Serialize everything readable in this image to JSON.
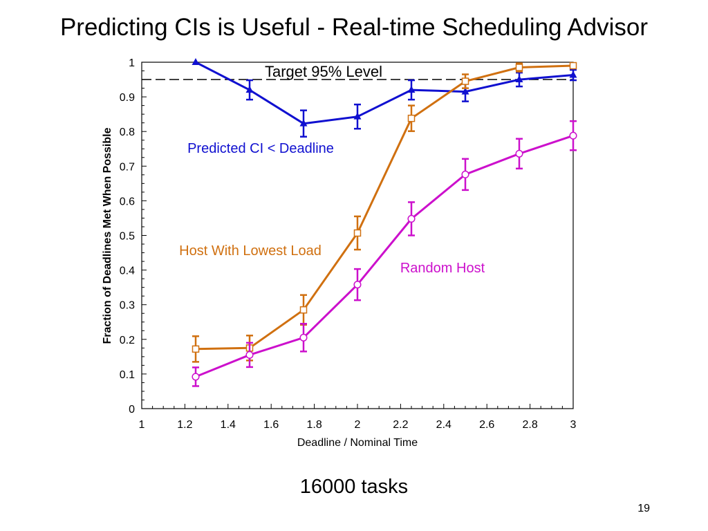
{
  "slide": {
    "title": "Predicting CIs is Useful - Real-time Scheduling Advisor",
    "caption": "16000 tasks",
    "page_number": "19"
  },
  "chart_data": {
    "type": "line",
    "title": "",
    "xlabel": "Deadline / Nominal Time",
    "ylabel": "Fraction of Deadlines Met When Possible",
    "xlim": [
      1,
      3
    ],
    "ylim": [
      0,
      1
    ],
    "x_ticks": [
      1,
      1.2,
      1.4,
      1.6,
      1.8,
      2,
      2.2,
      2.4,
      2.6,
      2.8,
      3
    ],
    "x_tick_labels": [
      "1",
      "1.2",
      "1.4",
      "1.6",
      "1.8",
      "2",
      "2.2",
      "2.4",
      "2.6",
      "2.8",
      "3"
    ],
    "y_ticks": [
      0,
      0.1,
      0.2,
      0.3,
      0.4,
      0.5,
      0.6,
      0.7,
      0.8,
      0.9,
      1
    ],
    "y_tick_labels": [
      "0",
      "0.1",
      "0.2",
      "0.3",
      "0.4",
      "0.5",
      "0.6",
      "0.7",
      "0.8",
      "0.9",
      "1"
    ],
    "grid": false,
    "reference_line": {
      "y": 0.95,
      "style": "dashed",
      "label": "Target 95% Level",
      "color": "#000000"
    },
    "series": [
      {
        "name": "Predicted CI < Deadline",
        "color": "#1010d0",
        "marker": "triangle",
        "x": [
          1.25,
          1.5,
          1.75,
          2.0,
          2.25,
          2.5,
          2.75,
          3.0
        ],
        "y": [
          1.0,
          0.92,
          0.823,
          0.843,
          0.92,
          0.915,
          0.95,
          0.963
        ],
        "err": [
          0.0,
          0.028,
          0.038,
          0.035,
          0.028,
          0.028,
          0.02,
          0.015
        ]
      },
      {
        "name": "Host With Lowest Load",
        "color": "#d07010",
        "marker": "square",
        "x": [
          1.25,
          1.5,
          1.75,
          2.0,
          2.25,
          2.5,
          2.75,
          3.0
        ],
        "y": [
          0.172,
          0.175,
          0.285,
          0.507,
          0.838,
          0.945,
          0.985,
          0.99
        ],
        "err": [
          0.037,
          0.036,
          0.043,
          0.048,
          0.037,
          0.02,
          0.012,
          0.006
        ]
      },
      {
        "name": "Random Host",
        "color": "#cc10cc",
        "marker": "circle",
        "x": [
          1.25,
          1.5,
          1.75,
          2.0,
          2.25,
          2.5,
          2.75,
          3.0
        ],
        "y": [
          0.092,
          0.155,
          0.205,
          0.358,
          0.548,
          0.676,
          0.736,
          0.788
        ],
        "err": [
          0.027,
          0.035,
          0.04,
          0.045,
          0.048,
          0.045,
          0.043,
          0.042
        ]
      }
    ]
  }
}
